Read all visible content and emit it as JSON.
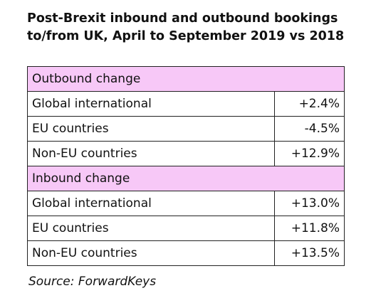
{
  "title": [
    "Post-Brexit inbound and outbound bookings",
    "to/from UK, April to September 2019 vs 2018"
  ],
  "sections": [
    {
      "header": "Outbound change",
      "rows": [
        [
          "Global international",
          "+2.4%"
        ],
        [
          "EU countries",
          "-4.5%"
        ],
        [
          "Non-EU countries",
          "+12.9%"
        ]
      ]
    },
    {
      "header": "Inbound change",
      "rows": [
        [
          "Global international",
          "+13.0%"
        ],
        [
          "EU countries",
          "+11.8%"
        ],
        [
          "Non-EU countries",
          "+13.5%"
        ]
      ]
    }
  ],
  "source": "Source: ForwardKeys"
}
